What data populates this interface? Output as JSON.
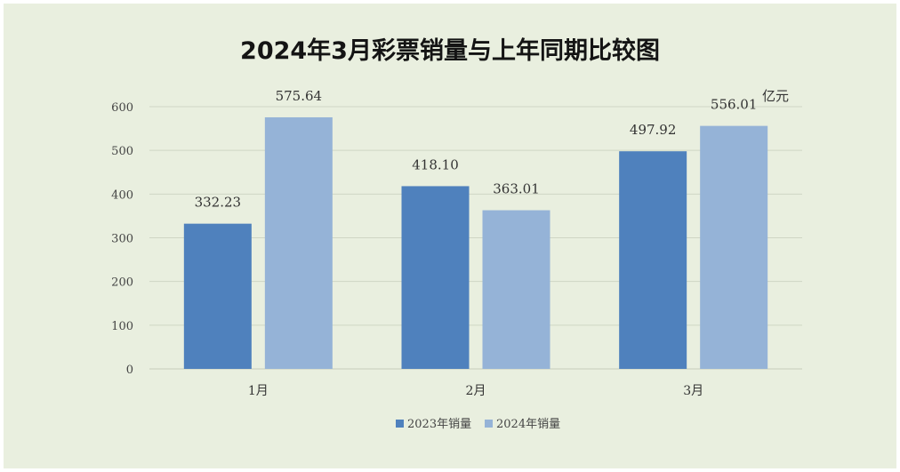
{
  "chart_data": {
    "type": "bar",
    "title": "2024年3月彩票销量与上年同期比较图",
    "unit": "亿元",
    "categories": [
      "1月",
      "2月",
      "3月"
    ],
    "series": [
      {
        "name": "2023年销量",
        "color": "#4f81bd",
        "values": [
          332.23,
          418.1,
          497.92
        ],
        "labels": [
          "332.23",
          "418.10",
          "497.92"
        ]
      },
      {
        "name": "2024年销量",
        "color": "#95b3d7",
        "values": [
          575.64,
          363.01,
          556.01
        ],
        "labels": [
          "575.64",
          "363.01",
          "556.01"
        ]
      }
    ],
    "ylim": [
      0,
      600
    ],
    "yticks": [
      0,
      100,
      200,
      300,
      400,
      500,
      600
    ],
    "grid": true,
    "legend_position": "bottom"
  }
}
